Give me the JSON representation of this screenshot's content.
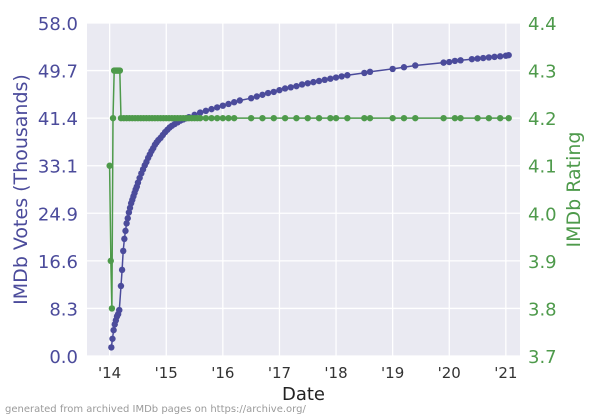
{
  "chart_data": {
    "type": "line",
    "title": "",
    "xlabel": "Date",
    "ylabel_left": "IMDb Votes (Thousands)",
    "ylabel_right": "IMDb Rating",
    "x_ticks": [
      {
        "label": "'14",
        "value": 2014.0
      },
      {
        "label": "'15",
        "value": 2015.0
      },
      {
        "label": "'16",
        "value": 2016.0
      },
      {
        "label": "'17",
        "value": 2017.0
      },
      {
        "label": "'18",
        "value": 2018.0
      },
      {
        "label": "'19",
        "value": 2019.0
      },
      {
        "label": "'20",
        "value": 2020.0
      },
      {
        "label": "'21",
        "value": 2021.0
      }
    ],
    "xlim": [
      2013.6,
      2021.25
    ],
    "ylim_left": [
      0,
      58.0
    ],
    "yticks_left": [
      "0.0",
      "8.3",
      "16.6",
      "24.9",
      "33.1",
      "41.4",
      "49.7",
      "58.0"
    ],
    "ylim_right": [
      3.7,
      4.4
    ],
    "yticks_right": [
      "3.7",
      "3.8",
      "3.9",
      "4.0",
      "4.1",
      "4.2",
      "4.3",
      "4.4"
    ],
    "grid": true,
    "series": [
      {
        "axis": "left",
        "color": "#4b4b9b",
        "x": [
          2014.03,
          2014.05,
          2014.07,
          2014.09,
          2014.11,
          2014.13,
          2014.15,
          2014.17,
          2014.2,
          2014.22,
          2014.24,
          2014.26,
          2014.28,
          2014.3,
          2014.32,
          2014.34,
          2014.36,
          2014.38,
          2014.4,
          2014.42,
          2014.44,
          2014.46,
          2014.48,
          2014.5,
          2014.53,
          2014.56,
          2014.59,
          2014.62,
          2014.65,
          2014.68,
          2014.71,
          2014.74,
          2014.77,
          2014.8,
          2014.83,
          2014.86,
          2014.9,
          2014.94,
          2014.98,
          2015.02,
          2015.06,
          2015.1,
          2015.15,
          2015.2,
          2015.25,
          2015.3,
          2015.35,
          2015.4,
          2015.5,
          2015.6,
          2015.7,
          2015.8,
          2015.9,
          2016.0,
          2016.1,
          2016.2,
          2016.3,
          2016.5,
          2016.6,
          2016.7,
          2016.8,
          2016.9,
          2017.0,
          2017.1,
          2017.2,
          2017.3,
          2017.4,
          2017.5,
          2017.6,
          2017.7,
          2017.8,
          2017.9,
          2018.0,
          2018.1,
          2018.2,
          2018.5,
          2018.6,
          2019.0,
          2019.2,
          2019.4,
          2019.9,
          2020.0,
          2020.1,
          2020.2,
          2020.4,
          2020.5,
          2020.6,
          2020.7,
          2020.8,
          2020.9,
          2021.0,
          2021.05
        ],
        "values": [
          1.5,
          3.0,
          4.5,
          5.5,
          6.2,
          6.9,
          7.3,
          8.0,
          12.2,
          15.0,
          18.3,
          20.4,
          21.8,
          23.1,
          24.0,
          25.0,
          25.8,
          26.6,
          27.2,
          27.8,
          28.4,
          29.0,
          29.5,
          30.2,
          31.0,
          31.8,
          32.5,
          33.2,
          33.8,
          34.5,
          35.1,
          35.7,
          36.2,
          36.8,
          37.2,
          37.6,
          38.0,
          38.5,
          39.0,
          39.4,
          39.8,
          40.1,
          40.4,
          40.7,
          41.0,
          41.2,
          41.4,
          41.6,
          42.0,
          42.4,
          42.7,
          43.0,
          43.3,
          43.6,
          43.9,
          44.2,
          44.5,
          44.9,
          45.2,
          45.5,
          45.8,
          46.0,
          46.3,
          46.6,
          46.8,
          47.0,
          47.3,
          47.5,
          47.7,
          47.9,
          48.1,
          48.3,
          48.5,
          48.7,
          48.9,
          49.3,
          49.5,
          50.0,
          50.3,
          50.6,
          51.1,
          51.2,
          51.4,
          51.5,
          51.7,
          51.8,
          51.9,
          52.0,
          52.1,
          52.2,
          52.3,
          52.4
        ]
      },
      {
        "axis": "right",
        "color": "#4e9a4b",
        "x": [
          2014.0,
          2014.02,
          2014.04,
          2014.06,
          2014.08,
          2014.1,
          2014.12,
          2014.14,
          2014.16,
          2014.18,
          2014.2,
          2014.25,
          2014.3,
          2014.35,
          2014.4,
          2014.45,
          2014.5,
          2014.55,
          2014.6,
          2014.65,
          2014.7,
          2014.75,
          2014.8,
          2014.85,
          2014.9,
          2014.95,
          2015.0,
          2015.05,
          2015.1,
          2015.15,
          2015.2,
          2015.25,
          2015.3,
          2015.35,
          2015.4,
          2015.45,
          2015.5,
          2015.55,
          2015.6,
          2015.7,
          2015.8,
          2015.9,
          2016.0,
          2016.1,
          2016.2,
          2016.5,
          2016.7,
          2016.9,
          2017.1,
          2017.3,
          2017.5,
          2017.7,
          2017.9,
          2018.0,
          2018.2,
          2018.5,
          2018.6,
          2019.0,
          2019.2,
          2019.4,
          2019.9,
          2020.1,
          2020.2,
          2020.5,
          2020.7,
          2020.9,
          2021.05
        ],
        "values": [
          4.1,
          3.9,
          3.8,
          4.2,
          4.3,
          4.3,
          4.3,
          4.3,
          4.3,
          4.3,
          4.2,
          4.2,
          4.2,
          4.2,
          4.2,
          4.2,
          4.2,
          4.2,
          4.2,
          4.2,
          4.2,
          4.2,
          4.2,
          4.2,
          4.2,
          4.2,
          4.2,
          4.2,
          4.2,
          4.2,
          4.2,
          4.2,
          4.2,
          4.2,
          4.2,
          4.2,
          4.2,
          4.2,
          4.2,
          4.2,
          4.2,
          4.2,
          4.2,
          4.2,
          4.2,
          4.2,
          4.2,
          4.2,
          4.2,
          4.2,
          4.2,
          4.2,
          4.2,
          4.2,
          4.2,
          4.2,
          4.2,
          4.2,
          4.2,
          4.2,
          4.2,
          4.2,
          4.2,
          4.2,
          4.2,
          4.2,
          4.2
        ]
      }
    ]
  },
  "footer": {
    "note": "generated from archived IMDb pages on https://archive.org/"
  }
}
